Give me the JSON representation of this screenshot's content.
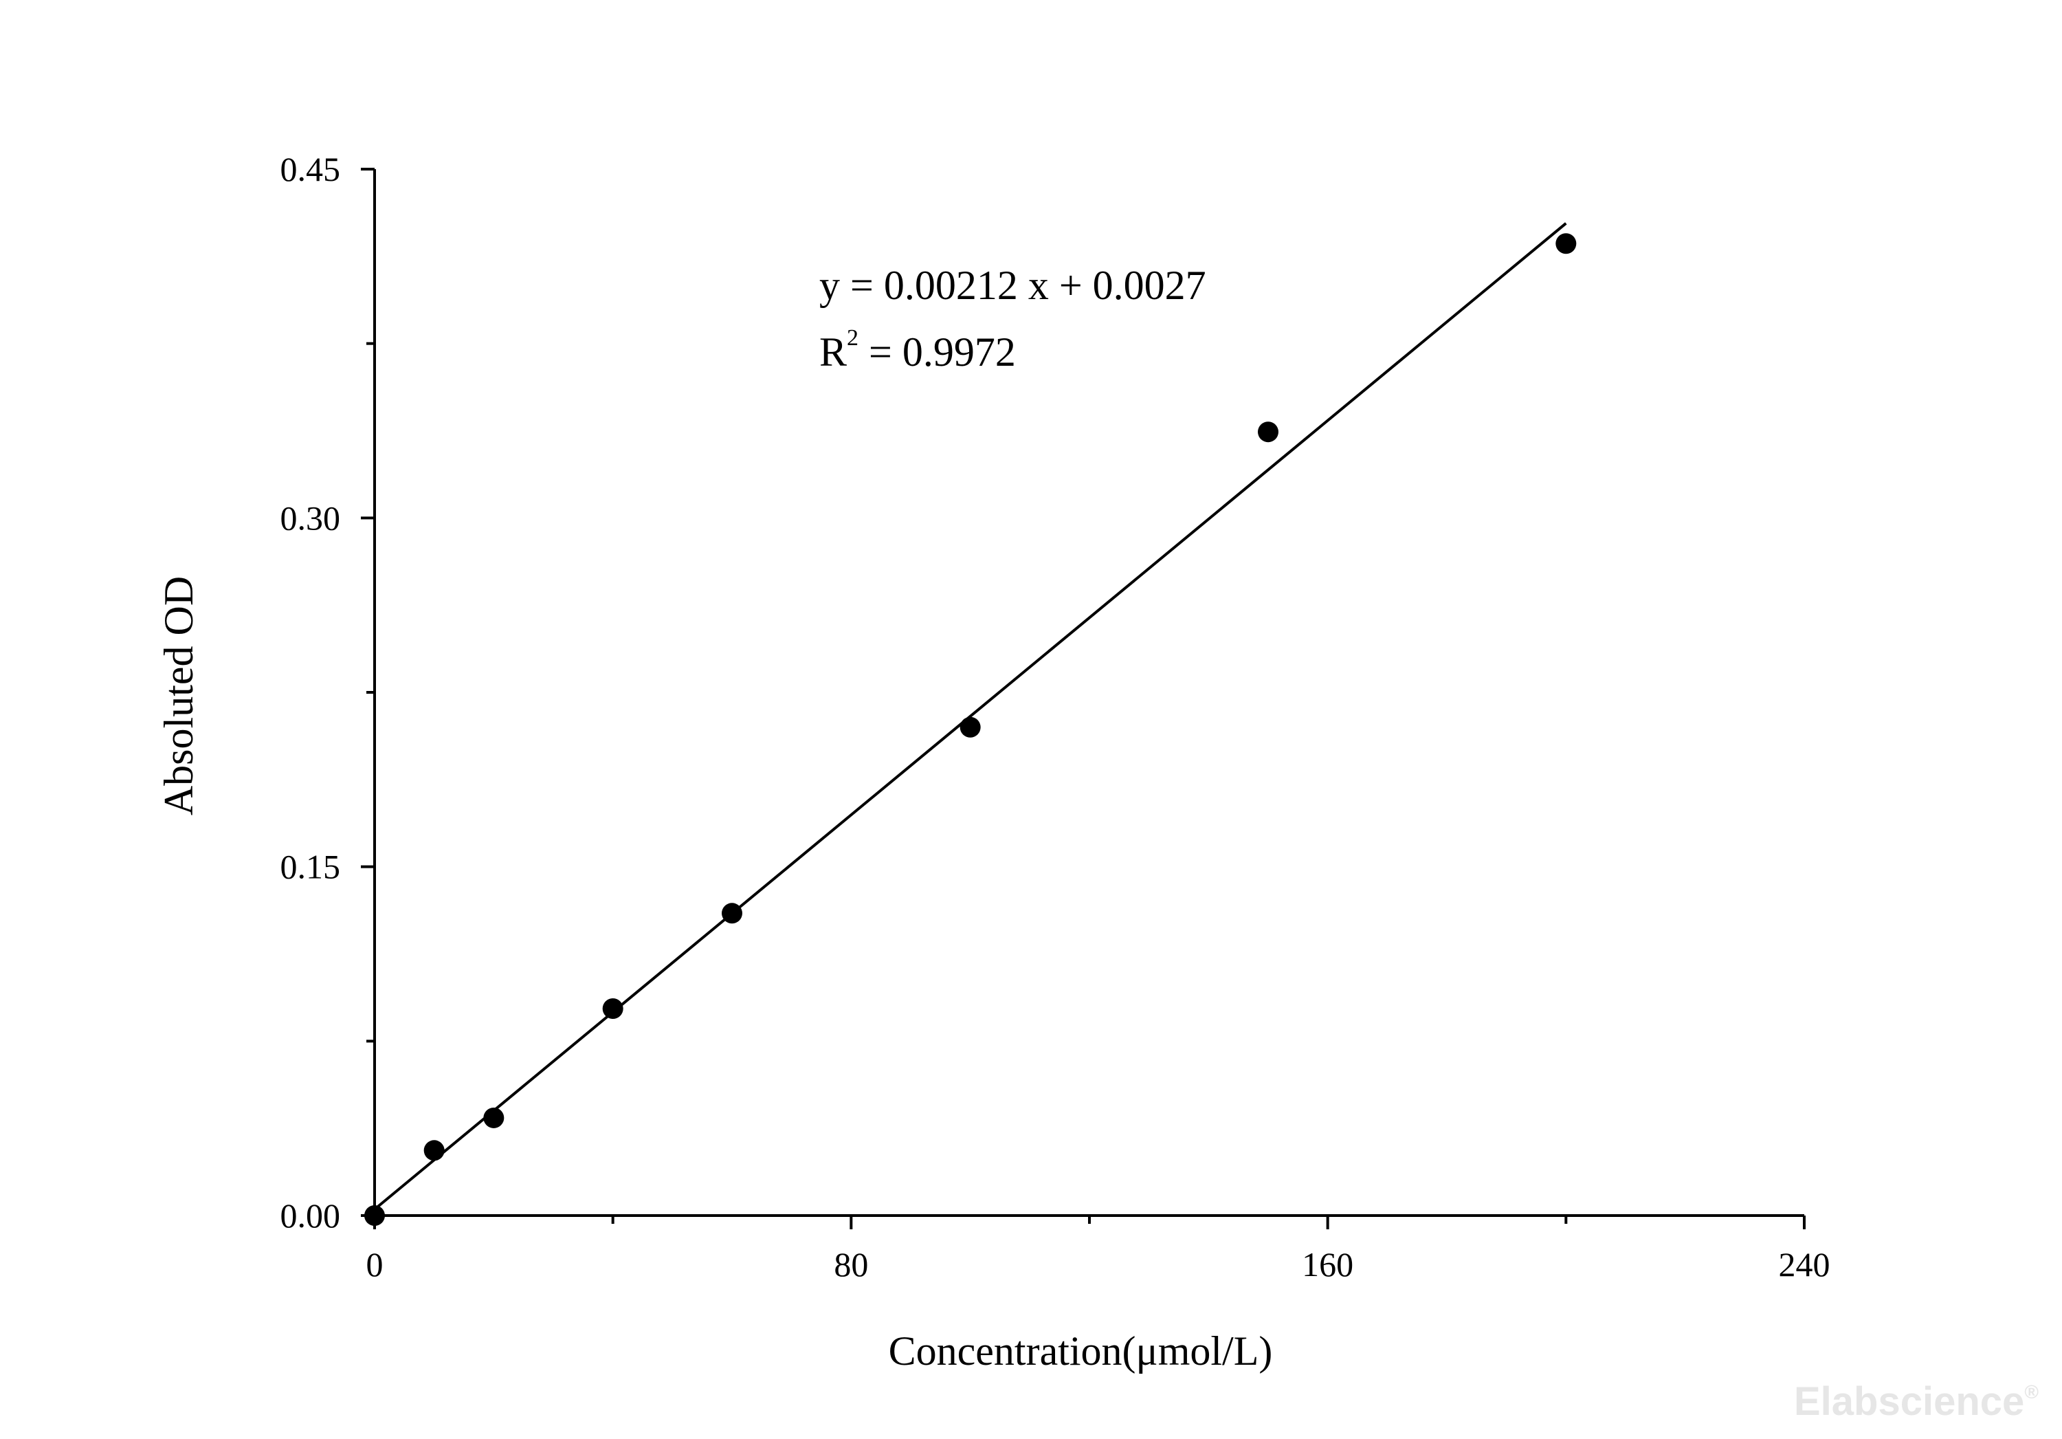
{
  "chart_data": {
    "type": "scatter",
    "xlabel": "Concentration(μmol/L)",
    "ylabel": "Absoluted OD",
    "xlim": [
      0,
      240
    ],
    "ylim": [
      0,
      0.45
    ],
    "x_ticks": [
      "0",
      "80",
      "160",
      "240"
    ],
    "y_ticks": [
      "0.00",
      "0.15",
      "0.30",
      "0.45"
    ],
    "x_tick_values": [
      0,
      80,
      160,
      240
    ],
    "y_tick_values": [
      0,
      0.15,
      0.3,
      0.45
    ],
    "x_minor_tick_values": [
      40,
      120,
      200
    ],
    "y_minor_tick_values": [
      0.075,
      0.225,
      0.375
    ],
    "grid": false,
    "points": [
      {
        "x": 0,
        "y": 0.0
      },
      {
        "x": 10,
        "y": 0.028
      },
      {
        "x": 20,
        "y": 0.042
      },
      {
        "x": 40,
        "y": 0.089
      },
      {
        "x": 60,
        "y": 0.13
      },
      {
        "x": 100,
        "y": 0.21
      },
      {
        "x": 150,
        "y": 0.337
      },
      {
        "x": 200,
        "y": 0.418
      }
    ],
    "fit": {
      "slope": 0.00212,
      "intercept": 0.0027,
      "x_start": 0,
      "x_end": 200
    },
    "equation_text": "y = 0.00212 x + 0.0027",
    "r2_prefix": "R",
    "r2_sup": "2",
    "r2_suffix": " = 0.9972"
  },
  "watermark": "Elabscience",
  "watermark_mark": "®"
}
